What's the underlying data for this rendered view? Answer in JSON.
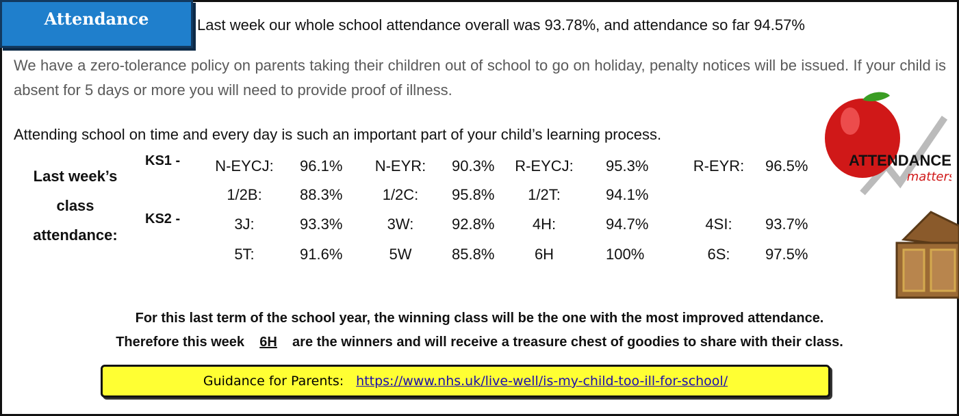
{
  "header": {
    "badge": "Attendance",
    "summary": "Last week our whole school attendance overall was 93.78%, and attendance so far 94.57%"
  },
  "policy": [
    "We have a zero-tolerance policy on parents taking their children out of school to go on holiday, penalty notices will be issued.  If your child is absent for 5 days or more you will need to provide proof of illness.",
    "Attending school on time and every day is such an important part of your child’s learning process."
  ],
  "logo": {
    "title": "ATTENDANCE",
    "subtitle": "matters"
  },
  "class_attendance": {
    "label": "Last week’s class attendance:",
    "groups": [
      {
        "name": "KS1 -",
        "rows": [
          [
            [
              "N-EYCJ:",
              "96.1%"
            ],
            [
              "N-EYR:",
              "90.3%"
            ],
            [
              "R-EYCJ:",
              "95.3%"
            ],
            [
              "R-EYR:",
              "96.5%"
            ]
          ],
          [
            [
              "1/2B:",
              "88.3%"
            ],
            [
              "1/2C:",
              "95.8%"
            ],
            [
              "1/2T:",
              "94.1%"
            ]
          ]
        ]
      },
      {
        "name": "KS2 -",
        "rows": [
          [
            [
              "3J:",
              "93.3%"
            ],
            [
              "3W:",
              "92.8%"
            ],
            [
              "4H:",
              "94.7%"
            ],
            [
              "4SI:",
              "93.7%"
            ]
          ],
          [
            [
              "5T:",
              "91.6%"
            ],
            [
              "5W",
              "85.8%"
            ],
            [
              "6H",
              "100%"
            ],
            [
              "6S:",
              "97.5%"
            ]
          ]
        ]
      }
    ]
  },
  "winners": {
    "line1": "For this last term of the school year, the winning class will be the one with the most improved attendance.",
    "before": "Therefore this week",
    "winner": "6H",
    "after": "are the winners and will receive a treasure chest of goodies to share with their class."
  },
  "guidance": {
    "label": "Guidance for Parents:",
    "link": "https://www.nhs.uk/live-well/is-my-child-too-ill-for-school/"
  }
}
